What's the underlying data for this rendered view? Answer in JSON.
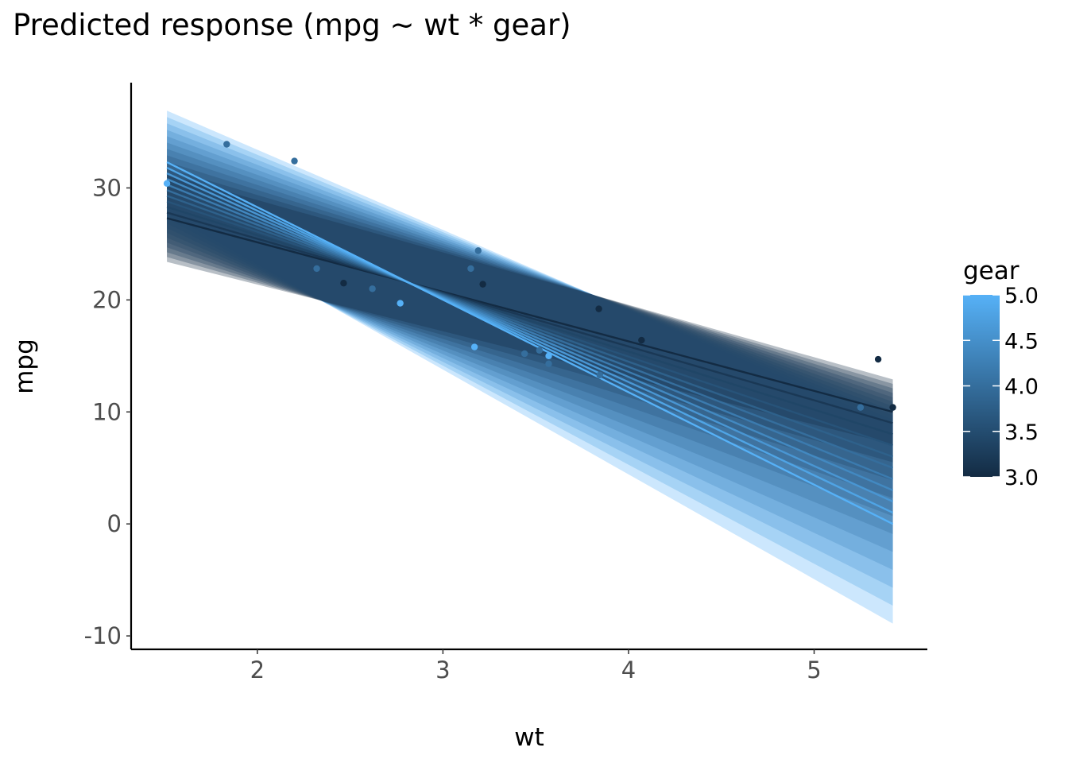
{
  "chart_data": {
    "type": "line",
    "title": "Predicted response (mpg ~ wt * gear)",
    "xlabel": "wt",
    "ylabel": "mpg",
    "xlim": [
      1.32,
      5.61
    ],
    "ylim": [
      -11.2,
      39.4
    ],
    "x_ticks": [
      2,
      3,
      4,
      5
    ],
    "y_ticks": [
      -10,
      0,
      10,
      20,
      30
    ],
    "grid": false,
    "legend": {
      "title": "gear",
      "placement": "right",
      "type": "colorbar",
      "range": [
        3.0,
        5.0
      ],
      "ticks": [
        "3.0",
        "3.5",
        "4.0",
        "4.5",
        "5.0"
      ],
      "color_low": "#132b43",
      "color_high": "#56b1f7"
    },
    "prediction": {
      "x_range": [
        1.513,
        5.424
      ],
      "gear_levels": [
        3.0,
        3.2,
        3.4,
        3.6,
        3.8,
        4.0,
        4.2,
        4.4,
        4.6,
        4.8,
        5.0
      ],
      "fit_left": [
        27.3,
        32.3
      ],
      "fit_right": [
        10.0,
        0.0
      ],
      "ci_left_halfwidth": [
        3.9,
        4.6
      ],
      "ci_right_halfwidth": [
        2.9,
        8.9
      ]
    },
    "points": [
      {
        "x": 1.513,
        "y": 30.4,
        "gear": 5
      },
      {
        "x": 1.835,
        "y": 33.9,
        "gear": 4
      },
      {
        "x": 2.2,
        "y": 32.4,
        "gear": 4
      },
      {
        "x": 2.32,
        "y": 22.8,
        "gear": 4
      },
      {
        "x": 2.465,
        "y": 21.5,
        "gear": 3
      },
      {
        "x": 2.62,
        "y": 21.0,
        "gear": 4
      },
      {
        "x": 2.77,
        "y": 19.7,
        "gear": 5
      },
      {
        "x": 3.15,
        "y": 22.8,
        "gear": 4
      },
      {
        "x": 3.17,
        "y": 15.8,
        "gear": 5
      },
      {
        "x": 3.19,
        "y": 24.4,
        "gear": 4
      },
      {
        "x": 3.215,
        "y": 21.4,
        "gear": 3
      },
      {
        "x": 3.44,
        "y": 15.2,
        "gear": 4
      },
      {
        "x": 3.52,
        "y": 15.5,
        "gear": 4
      },
      {
        "x": 3.57,
        "y": 15.0,
        "gear": 5
      },
      {
        "x": 3.57,
        "y": 14.3,
        "gear": 4
      },
      {
        "x": 3.84,
        "y": 19.2,
        "gear": 3
      },
      {
        "x": 3.845,
        "y": 13.3,
        "gear": 4
      },
      {
        "x": 4.07,
        "y": 16.4,
        "gear": 3
      },
      {
        "x": 5.25,
        "y": 10.4,
        "gear": 4
      },
      {
        "x": 5.345,
        "y": 14.7,
        "gear": 3
      },
      {
        "x": 5.424,
        "y": 10.4,
        "gear": 3
      }
    ]
  }
}
